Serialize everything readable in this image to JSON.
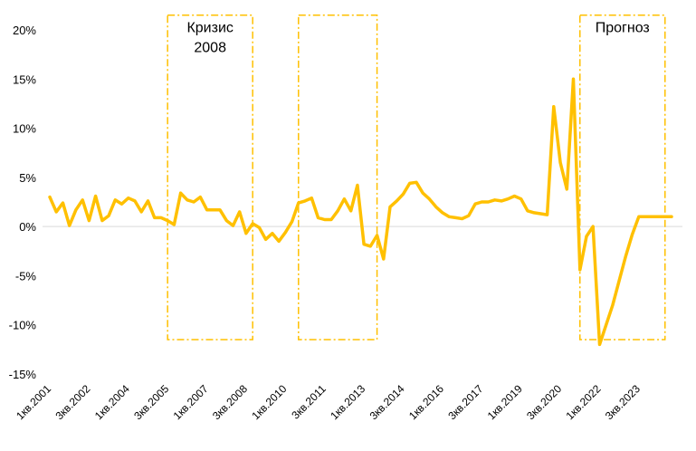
{
  "chart_data": {
    "type": "line",
    "title": "",
    "xlabel": "",
    "ylabel": "",
    "ylim": [
      -15,
      20
    ],
    "y_ticks": [
      "20%",
      "15%",
      "10%",
      "5%",
      "0%",
      "-5%",
      "-10%",
      "-15%"
    ],
    "y_tick_values": [
      20,
      15,
      10,
      5,
      0,
      -5,
      -10,
      -15
    ],
    "x_tick_labels": [
      "1кв.2001",
      "3кв.2002",
      "1кв.2004",
      "3кв.2005",
      "1кв.2007",
      "3кв.2008",
      "1кв.2010",
      "3кв.2011",
      "1кв.2013",
      "3кв.2014",
      "1кв.2016",
      "3кв.2017",
      "1кв.2019",
      "3кв.2020",
      "1кв.2022",
      "3кв.2023"
    ],
    "x_tick_index_step": 6,
    "annotations": [
      {
        "label_lines": [
          "Кризис",
          "2008"
        ],
        "x_range_index": [
          18,
          31
        ],
        "y_range": [
          -11.5,
          21.5
        ]
      },
      {
        "label_lines": [
          ""
        ],
        "x_range_index": [
          38,
          50
        ],
        "y_range": [
          -11.5,
          21.5
        ]
      },
      {
        "label_lines": [
          "Прогноз"
        ],
        "x_range_index": [
          81,
          94
        ],
        "y_range": [
          -11.5,
          21.5
        ]
      }
    ],
    "series": [
      {
        "color": "#FFC000",
        "values": [
          3.0,
          1.5,
          2.4,
          0.1,
          1.7,
          2.7,
          0.6,
          3.1,
          0.6,
          1.1,
          2.7,
          2.3,
          2.9,
          2.6,
          1.5,
          2.6,
          0.9,
          0.9,
          0.6,
          0.2,
          3.4,
          2.7,
          2.5,
          3.0,
          1.7,
          1.7,
          1.7,
          0.6,
          0.1,
          1.5,
          -0.7,
          0.3,
          -0.1,
          -1.3,
          -0.7,
          -1.5,
          -0.6,
          0.5,
          2.4,
          2.6,
          2.9,
          0.9,
          0.7,
          0.7,
          1.6,
          2.8,
          1.6,
          4.2,
          -1.8,
          -2.0,
          -0.9,
          -3.3,
          2.0,
          2.6,
          3.3,
          4.4,
          4.5,
          3.4,
          2.8,
          2.0,
          1.4,
          1.0,
          0.9,
          0.8,
          1.1,
          2.3,
          2.5,
          2.5,
          2.7,
          2.6,
          2.8,
          3.1,
          2.8,
          1.6,
          1.4,
          1.3,
          1.2,
          12.2,
          6.5,
          3.8,
          15.0,
          -4.4,
          -1.0,
          0.0,
          -12.0,
          -10.0,
          -8.0,
          -5.5,
          -3.0,
          -0.8,
          1.0,
          1.0,
          1.0,
          1.0,
          1.0,
          1.0
        ]
      }
    ],
    "grid": false,
    "zero_line": true,
    "legend": "none"
  }
}
